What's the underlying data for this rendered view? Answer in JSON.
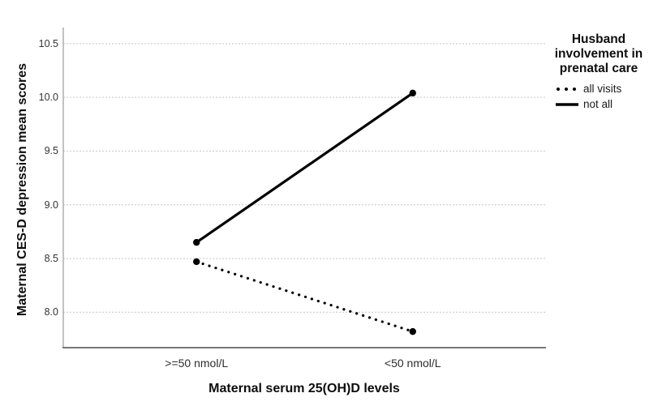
{
  "figure": {
    "background": "#ffffff"
  },
  "chart_data": {
    "type": "line",
    "title": "",
    "xlabel": "Maternal serum 25(OH)D levels",
    "ylabel": "Maternal CES-D depression mean scores",
    "categories": [
      ">=50 nmol/L",
      "<50 nmol/L"
    ],
    "series": [
      {
        "name": "all visits",
        "style": "dotted",
        "values": [
          8.47,
          7.82
        ]
      },
      {
        "name": "not all",
        "style": "solid",
        "values": [
          8.65,
          10.04
        ]
      }
    ],
    "yticks": [
      "8.0",
      "8.5",
      "9.0",
      "9.5",
      "10.0",
      "10.5"
    ],
    "ylim": [
      7.67,
      10.65
    ],
    "grid": "horizontal-dotted-gridlines",
    "legend": {
      "title": "Husband involvement in prenatal care",
      "position": "right"
    },
    "colors": {
      "line": "#000000",
      "grid": "#c6c6c6",
      "y_axis_line": "#a8a8a8",
      "x_axis_line": "#787878",
      "tick_text": "#333333",
      "title_text": "#0d0d0d"
    }
  }
}
